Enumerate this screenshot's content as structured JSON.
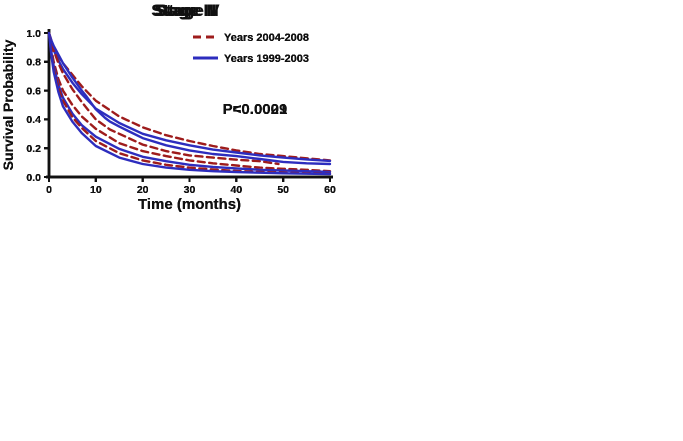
{
  "figure": {
    "background": "#ffffff",
    "axis_color": "#111111",
    "text_color": "#111111",
    "colors": {
      "years_2004_2008": "#9E1C1C",
      "years_1999_2003": "#2D2DBE"
    },
    "legend": {
      "labels": [
        "Years 2004-2008",
        "Years 1999-2003"
      ],
      "position": "top-right"
    }
  },
  "chart_data": [
    {
      "type": "line",
      "title": "Stage I",
      "xlabel": "Time (months)",
      "ylabel": "Survival Probability",
      "annotation": "P<0.0001",
      "xlim": [
        0,
        60
      ],
      "ylim": [
        0.0,
        1.0
      ],
      "xticks": [
        0,
        10,
        20,
        30,
        40,
        50,
        60
      ],
      "yticks": [
        0.0,
        0.2,
        0.4,
        0.6,
        0.8,
        1.0
      ],
      "grid": false,
      "legend_position": "top-right",
      "series": [
        {
          "name": "Years 2004-2008",
          "style": "dashed",
          "color": "#9E1C1C",
          "x": [
            0,
            0.5,
            1,
            2,
            3,
            5,
            7,
            10,
            15,
            20,
            25,
            30,
            35,
            40,
            45,
            50,
            55,
            60
          ],
          "values": [
            1.0,
            0.95,
            0.9,
            0.84,
            0.79,
            0.71,
            0.63,
            0.53,
            0.42,
            0.345,
            0.29,
            0.25,
            0.215,
            0.185,
            0.16,
            0.145,
            0.13,
            0.115
          ]
        },
        {
          "name": "Years 1999-2003",
          "style": "solid",
          "color": "#2D2DBE",
          "x": [
            0,
            0.5,
            1,
            2,
            3,
            5,
            7,
            10,
            15,
            20,
            25,
            30,
            35,
            40,
            45,
            50,
            55,
            60
          ],
          "values": [
            1.0,
            0.94,
            0.88,
            0.81,
            0.75,
            0.655,
            0.575,
            0.475,
            0.375,
            0.3,
            0.255,
            0.22,
            0.19,
            0.17,
            0.15,
            0.135,
            0.122,
            0.112
          ]
        }
      ]
    },
    {
      "type": "line",
      "title": "Stage II",
      "xlabel": "Time (months)",
      "ylabel": "Survival Probability",
      "annotation": "P=0.0029",
      "xlim": [
        0,
        60
      ],
      "ylim": [
        0.0,
        1.0
      ],
      "xticks": [
        0,
        10,
        20,
        30,
        40,
        50,
        60
      ],
      "yticks": [
        0.0,
        0.2,
        0.4,
        0.6,
        0.8,
        1.0
      ],
      "grid": false,
      "legend_position": "top-right",
      "series": [
        {
          "name": "Years 2004-2008",
          "style": "dashed",
          "color": "#9E1C1C",
          "x": [
            0,
            0.5,
            1,
            2,
            3,
            5,
            7,
            10,
            13,
            15,
            20,
            25,
            30,
            35,
            40,
            45,
            49
          ],
          "values": [
            1.0,
            0.93,
            0.88,
            0.79,
            0.72,
            0.61,
            0.52,
            0.4,
            0.33,
            0.3,
            0.225,
            0.18,
            0.15,
            0.135,
            0.12,
            0.11,
            0.09
          ]
        },
        {
          "name": "Years 1999-2003",
          "style": "solid",
          "color": "#2D2DBE",
          "x": [
            0,
            0.5,
            1,
            2,
            3,
            5,
            7,
            8,
            10,
            12,
            13,
            15,
            20,
            25,
            30,
            35,
            40,
            45,
            50,
            55,
            60
          ],
          "values": [
            1.0,
            0.95,
            0.91,
            0.85,
            0.79,
            0.69,
            0.6,
            0.56,
            0.47,
            0.41,
            0.385,
            0.35,
            0.27,
            0.22,
            0.185,
            0.16,
            0.145,
            0.125,
            0.105,
            0.095,
            0.09
          ]
        }
      ]
    },
    {
      "type": "line",
      "title": "Stage III",
      "xlabel": "Time (months)",
      "ylabel": "Survival Probability",
      "annotation": "P<0.0001",
      "xlim": [
        0,
        60
      ],
      "ylim": [
        0.0,
        1.0
      ],
      "xticks": [
        0,
        10,
        20,
        30,
        40,
        50,
        60
      ],
      "yticks": [
        0.0,
        0.2,
        0.4,
        0.6,
        0.8,
        1.0
      ],
      "grid": false,
      "legend_position": "top-right",
      "series": [
        {
          "name": "Years 2004-2008",
          "style": "dashed",
          "color": "#9E1C1C",
          "x": [
            0,
            0.5,
            1,
            2,
            3,
            5,
            7,
            10,
            15,
            20,
            25,
            30,
            35,
            40,
            45,
            50,
            55,
            60
          ],
          "values": [
            1.0,
            0.89,
            0.8,
            0.68,
            0.6,
            0.5,
            0.42,
            0.335,
            0.235,
            0.18,
            0.145,
            0.115,
            0.095,
            0.08,
            0.065,
            0.057,
            0.05,
            0.04
          ]
        },
        {
          "name": "Years 1999-2003",
          "style": "solid",
          "color": "#2D2DBE",
          "x": [
            0,
            0.5,
            1,
            2,
            3,
            5,
            7,
            10,
            15,
            20,
            25,
            30,
            35,
            40,
            45,
            50,
            55,
            60
          ],
          "values": [
            1.0,
            0.87,
            0.77,
            0.64,
            0.55,
            0.44,
            0.36,
            0.28,
            0.195,
            0.14,
            0.11,
            0.085,
            0.07,
            0.06,
            0.05,
            0.045,
            0.04,
            0.035
          ]
        }
      ]
    },
    {
      "type": "line",
      "title": "Stage IV",
      "xlabel": "Time (months)",
      "ylabel": "Survival Probability",
      "annotation": "P<0.0001",
      "xlim": [
        0,
        60
      ],
      "ylim": [
        0.0,
        1.0
      ],
      "xticks": [
        0,
        10,
        20,
        30,
        40,
        50,
        60
      ],
      "yticks": [
        0.0,
        0.2,
        0.4,
        0.6,
        0.8,
        1.0
      ],
      "grid": false,
      "legend_position": "top-right",
      "series": [
        {
          "name": "Years 2004-2008",
          "style": "dashed",
          "color": "#9E1C1C",
          "x": [
            0,
            0.5,
            1,
            2,
            3,
            5,
            7,
            10,
            15,
            20,
            25,
            30,
            35,
            40,
            45,
            50,
            55,
            60
          ],
          "values": [
            1.0,
            0.86,
            0.75,
            0.62,
            0.53,
            0.415,
            0.34,
            0.25,
            0.165,
            0.115,
            0.085,
            0.065,
            0.052,
            0.042,
            0.035,
            0.03,
            0.026,
            0.022
          ]
        },
        {
          "name": "Years 1999-2003",
          "style": "solid",
          "color": "#2D2DBE",
          "x": [
            0,
            0.5,
            1,
            2,
            3,
            5,
            7,
            10,
            15,
            20,
            25,
            30,
            35,
            40,
            45,
            50,
            55,
            60
          ],
          "values": [
            1.0,
            0.85,
            0.73,
            0.59,
            0.49,
            0.385,
            0.305,
            0.215,
            0.135,
            0.09,
            0.065,
            0.05,
            0.04,
            0.035,
            0.03,
            0.026,
            0.023,
            0.02
          ]
        }
      ]
    }
  ]
}
